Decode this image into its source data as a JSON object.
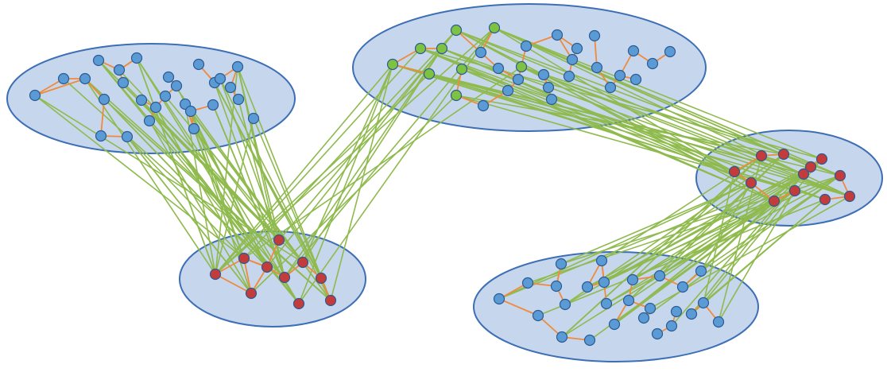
{
  "colors": {
    "background": "#ffffff",
    "cluster_fill": "#c6d6ec",
    "cluster_stroke": "#3d6fb5",
    "intra_edge": "#f08a3c",
    "inter_edge": "#8fba4e",
    "node_blue": "#5b9bd5",
    "node_green": "#7ec242",
    "node_red": "#c43b3b",
    "node_outline": "#2b5a94"
  },
  "clusters": [
    {
      "id": "top-left",
      "node_count": 27
    },
    {
      "id": "top-center",
      "node_count": 30,
      "highlighted": "green",
      "highlighted_count": 9
    },
    {
      "id": "bottom-left",
      "node_count": 10,
      "highlighted": "red",
      "highlighted_count": 10
    },
    {
      "id": "right",
      "node_count": 12,
      "highlighted": "red",
      "highlighted_count": 12
    },
    {
      "id": "bottom-right",
      "node_count": 26
    }
  ],
  "link_groups": [
    {
      "from": "top-left",
      "to": "bottom-left",
      "color": "inter_edge"
    },
    {
      "from": "top-center",
      "to": "bottom-left",
      "color": "inter_edge"
    },
    {
      "from": "top-center",
      "to": "right",
      "color": "inter_edge"
    },
    {
      "from": "right",
      "to": "bottom-right",
      "color": "inter_edge"
    }
  ]
}
